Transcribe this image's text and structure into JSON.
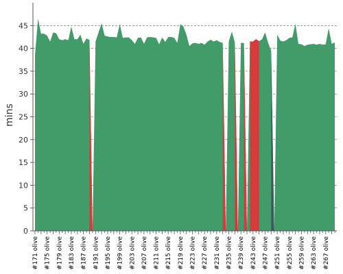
{
  "chart_data": {
    "type": "area",
    "title": "",
    "xlabel": "",
    "ylabel": "mins",
    "ylim": [
      0,
      50
    ],
    "yticks": [
      0,
      5,
      10,
      15,
      20,
      25,
      30,
      35,
      40,
      45
    ],
    "grid": "horizontal-dashed",
    "legend": "none",
    "colors": {
      "primary": "#419c6a",
      "highlight": "#d63b3b",
      "dark": "#40585a"
    },
    "x_start": 171,
    "x_suffix": " olive",
    "x_tick_labels": [
      "#171 olive",
      "#175 olive",
      "#179 olive",
      "#183 olive",
      "#187 olive",
      "#191 olive",
      "#195 olive",
      "#199 olive",
      "#203 olive",
      "#207 olive",
      "#211 olive",
      "#215 olive",
      "#219 olive",
      "#223 olive",
      "#227 olive",
      "#231 olive",
      "#235 olive",
      "#239 olive",
      "#243 olive",
      "#247 olive",
      "#251 olive",
      "#255 olive",
      "#259 olive",
      "#263 olive",
      "#267 olive"
    ],
    "values": [
      38.5,
      46.5,
      43.2,
      43.2,
      42.8,
      41.5,
      43.5,
      43.3,
      42.0,
      41.8,
      42.0,
      41.8,
      44.8,
      42.0,
      42.0,
      43.0,
      41.0,
      42.2,
      41.8,
      0,
      41.5,
      43.5,
      45.5,
      42.8,
      42.6,
      42.5,
      42.5,
      42.4,
      45.3,
      42.3,
      42.4,
      42.4,
      41.8,
      41.0,
      42.3,
      42.4,
      41.0,
      42.4,
      42.5,
      42.4,
      42.3,
      40.9,
      42.4,
      41.4,
      42.5,
      42.5,
      42.3,
      41.2,
      45.3,
      44.8,
      43.0,
      40.5,
      41.1,
      41.2,
      41.0,
      41.2,
      40.8,
      41.5,
      41.9,
      41.5,
      41.8,
      41.4,
      41.2,
      0,
      41.5,
      43.7,
      41.3,
      0,
      41.2,
      41.2,
      0,
      41.5,
      41.5,
      42.0,
      41.6,
      42.0,
      43.5,
      41.2,
      39.5,
      0,
      43.0,
      41.7,
      41.5,
      41.8,
      42.3,
      42.4,
      45.4,
      41.0,
      40.9,
      40.5,
      40.8,
      40.9,
      41.0,
      40.8,
      41.0,
      40.8,
      40.9,
      44.4,
      41.0,
      41.3
    ],
    "highlight_ranges": [
      {
        "from": 189,
        "to": 190,
        "color": "#d63b3b"
      },
      {
        "from": 233,
        "to": 234,
        "color": "#d63b3b"
      },
      {
        "from": 237,
        "to": 238,
        "color": "#d63b3b"
      },
      {
        "from": 240,
        "to": 241,
        "color": "#d63b3b"
      },
      {
        "from": 242,
        "to": 245,
        "color": "#d63b3b"
      },
      {
        "from": 249,
        "to": 250,
        "color": "#40585a"
      }
    ]
  }
}
